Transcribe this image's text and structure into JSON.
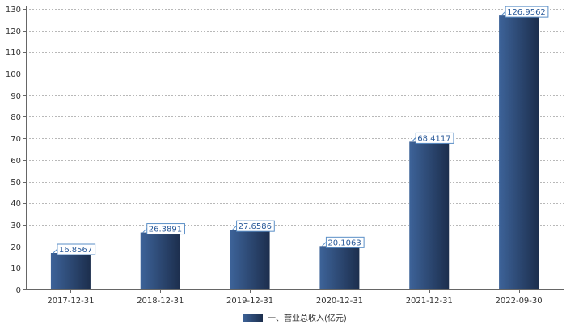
{
  "chart_data": {
    "type": "bar",
    "categories": [
      "2017-12-31",
      "2018-12-31",
      "2019-12-31",
      "2020-12-31",
      "2021-12-31",
      "2022-09-30"
    ],
    "series": [
      {
        "name": "一、营业总收入(亿元)",
        "values": [
          16.8567,
          26.3891,
          27.6586,
          20.1063,
          68.4117,
          126.9562
        ]
      }
    ],
    "data_labels": [
      "16.8567",
      "26.3891",
      "27.6586",
      "20.1063",
      "68.4117",
      "126.9562"
    ],
    "yticks": [
      0,
      10,
      20,
      30,
      40,
      50,
      60,
      70,
      80,
      90,
      100,
      110,
      120,
      130
    ],
    "ylim": [
      0,
      130
    ],
    "grid": "horizontal-dotted",
    "legend": "bottom-center",
    "colors": {
      "bar_light": "#3d6399",
      "bar_dark": "#1c2e4d",
      "label_border": "#5b8fc7",
      "label_text": "#2a5a9a"
    }
  }
}
